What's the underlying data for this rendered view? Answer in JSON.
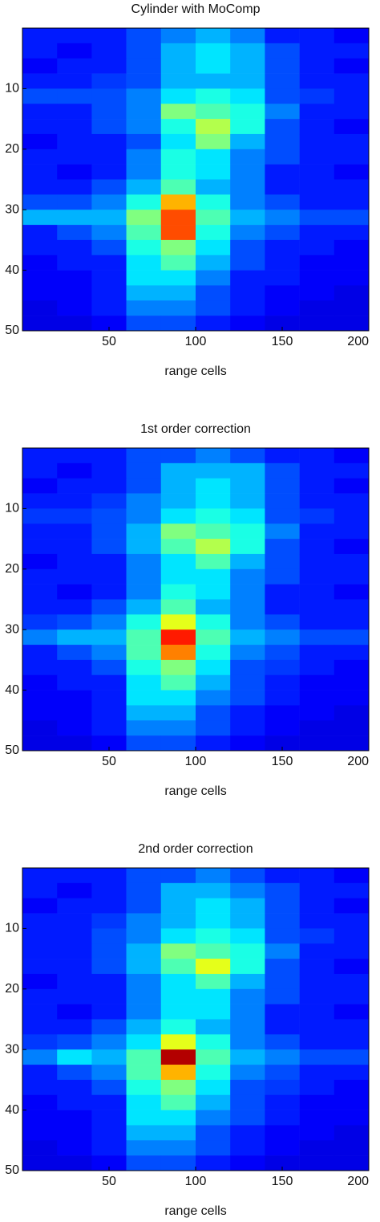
{
  "chart_data": [
    {
      "type": "heatmap",
      "title": "Cylinder with MoComp",
      "xlabel": "range cells",
      "xlim": [
        0,
        200
      ],
      "ylim": [
        0,
        50
      ],
      "xticks": [
        50,
        100,
        150,
        200
      ],
      "yticks": [
        10,
        20,
        30,
        40,
        50
      ],
      "colormap": "jet",
      "clim": [
        0,
        1
      ],
      "xbins": [
        0,
        20,
        40,
        60,
        80,
        100,
        120,
        140,
        160,
        180,
        200
      ],
      "ybins": [
        0,
        2.5,
        5,
        7.5,
        10,
        12.5,
        15,
        17.5,
        20,
        22.5,
        25,
        27.5,
        30,
        32.5,
        35,
        37.5,
        40,
        42.5,
        45,
        47.5,
        50
      ],
      "values": [
        [
          0.15,
          0.15,
          0.15,
          0.2,
          0.25,
          0.3,
          0.25,
          0.15,
          0.15,
          0.12
        ],
        [
          0.15,
          0.12,
          0.15,
          0.2,
          0.3,
          0.35,
          0.3,
          0.2,
          0.15,
          0.15
        ],
        [
          0.12,
          0.15,
          0.15,
          0.2,
          0.3,
          0.35,
          0.3,
          0.2,
          0.15,
          0.12
        ],
        [
          0.15,
          0.15,
          0.18,
          0.2,
          0.3,
          0.3,
          0.3,
          0.2,
          0.15,
          0.15
        ],
        [
          0.2,
          0.2,
          0.2,
          0.25,
          0.35,
          0.4,
          0.35,
          0.2,
          0.18,
          0.15
        ],
        [
          0.15,
          0.15,
          0.2,
          0.25,
          0.5,
          0.45,
          0.4,
          0.25,
          0.15,
          0.15
        ],
        [
          0.15,
          0.15,
          0.2,
          0.25,
          0.4,
          0.55,
          0.4,
          0.2,
          0.15,
          0.12
        ],
        [
          0.12,
          0.15,
          0.15,
          0.2,
          0.35,
          0.5,
          0.3,
          0.2,
          0.15,
          0.15
        ],
        [
          0.15,
          0.15,
          0.15,
          0.25,
          0.4,
          0.35,
          0.25,
          0.2,
          0.15,
          0.15
        ],
        [
          0.15,
          0.12,
          0.15,
          0.25,
          0.4,
          0.35,
          0.25,
          0.15,
          0.15,
          0.12
        ],
        [
          0.15,
          0.15,
          0.2,
          0.3,
          0.45,
          0.3,
          0.25,
          0.15,
          0.15,
          0.15
        ],
        [
          0.2,
          0.2,
          0.25,
          0.4,
          0.7,
          0.4,
          0.25,
          0.2,
          0.15,
          0.15
        ],
        [
          0.3,
          0.3,
          0.3,
          0.5,
          0.8,
          0.45,
          0.3,
          0.25,
          0.2,
          0.2
        ],
        [
          0.15,
          0.2,
          0.25,
          0.45,
          0.8,
          0.4,
          0.25,
          0.2,
          0.15,
          0.15
        ],
        [
          0.15,
          0.15,
          0.2,
          0.4,
          0.5,
          0.35,
          0.2,
          0.15,
          0.15,
          0.12
        ],
        [
          0.12,
          0.15,
          0.15,
          0.35,
          0.45,
          0.3,
          0.2,
          0.15,
          0.12,
          0.12
        ],
        [
          0.12,
          0.12,
          0.15,
          0.35,
          0.35,
          0.25,
          0.15,
          0.15,
          0.12,
          0.12
        ],
        [
          0.12,
          0.12,
          0.15,
          0.3,
          0.3,
          0.2,
          0.15,
          0.12,
          0.12,
          0.1
        ],
        [
          0.1,
          0.12,
          0.15,
          0.25,
          0.25,
          0.2,
          0.15,
          0.12,
          0.1,
          0.1
        ],
        [
          0.1,
          0.1,
          0.12,
          0.2,
          0.2,
          0.15,
          0.12,
          0.1,
          0.1,
          0.1
        ]
      ]
    },
    {
      "type": "heatmap",
      "title": "1st order correction",
      "xlabel": "range cells",
      "xlim": [
        0,
        200
      ],
      "ylim": [
        0,
        50
      ],
      "xticks": [
        50,
        100,
        150,
        200
      ],
      "yticks": [
        10,
        20,
        30,
        40,
        50
      ],
      "colormap": "jet",
      "clim": [
        0,
        1
      ],
      "xbins": [
        0,
        20,
        40,
        60,
        80,
        100,
        120,
        140,
        160,
        180,
        200
      ],
      "ybins": [
        0,
        2.5,
        5,
        7.5,
        10,
        12.5,
        15,
        17.5,
        20,
        22.5,
        25,
        27.5,
        30,
        32.5,
        35,
        37.5,
        40,
        42.5,
        45,
        47.5,
        50
      ],
      "values": [
        [
          0.15,
          0.15,
          0.15,
          0.2,
          0.2,
          0.25,
          0.2,
          0.15,
          0.15,
          0.12
        ],
        [
          0.15,
          0.12,
          0.15,
          0.2,
          0.3,
          0.3,
          0.3,
          0.2,
          0.15,
          0.15
        ],
        [
          0.12,
          0.15,
          0.15,
          0.2,
          0.3,
          0.35,
          0.3,
          0.2,
          0.15,
          0.12
        ],
        [
          0.15,
          0.15,
          0.18,
          0.25,
          0.3,
          0.35,
          0.3,
          0.2,
          0.15,
          0.15
        ],
        [
          0.18,
          0.18,
          0.2,
          0.25,
          0.35,
          0.4,
          0.35,
          0.2,
          0.18,
          0.15
        ],
        [
          0.15,
          0.15,
          0.2,
          0.3,
          0.5,
          0.45,
          0.4,
          0.25,
          0.15,
          0.15
        ],
        [
          0.15,
          0.15,
          0.2,
          0.3,
          0.45,
          0.55,
          0.4,
          0.2,
          0.15,
          0.12
        ],
        [
          0.12,
          0.15,
          0.15,
          0.25,
          0.35,
          0.45,
          0.3,
          0.2,
          0.15,
          0.15
        ],
        [
          0.15,
          0.15,
          0.15,
          0.25,
          0.35,
          0.35,
          0.25,
          0.2,
          0.15,
          0.15
        ],
        [
          0.15,
          0.12,
          0.15,
          0.25,
          0.4,
          0.35,
          0.25,
          0.15,
          0.15,
          0.12
        ],
        [
          0.15,
          0.15,
          0.2,
          0.3,
          0.45,
          0.3,
          0.25,
          0.15,
          0.15,
          0.15
        ],
        [
          0.18,
          0.2,
          0.25,
          0.4,
          0.6,
          0.4,
          0.25,
          0.2,
          0.15,
          0.15
        ],
        [
          0.25,
          0.3,
          0.3,
          0.45,
          0.85,
          0.45,
          0.3,
          0.25,
          0.2,
          0.2
        ],
        [
          0.15,
          0.2,
          0.25,
          0.45,
          0.75,
          0.4,
          0.25,
          0.2,
          0.15,
          0.15
        ],
        [
          0.15,
          0.15,
          0.2,
          0.4,
          0.5,
          0.35,
          0.2,
          0.18,
          0.15,
          0.12
        ],
        [
          0.12,
          0.15,
          0.15,
          0.35,
          0.45,
          0.3,
          0.2,
          0.15,
          0.12,
          0.12
        ],
        [
          0.12,
          0.12,
          0.15,
          0.35,
          0.35,
          0.25,
          0.2,
          0.15,
          0.12,
          0.12
        ],
        [
          0.12,
          0.12,
          0.15,
          0.3,
          0.3,
          0.2,
          0.15,
          0.12,
          0.12,
          0.1
        ],
        [
          0.1,
          0.12,
          0.15,
          0.25,
          0.25,
          0.2,
          0.15,
          0.12,
          0.1,
          0.1
        ],
        [
          0.1,
          0.1,
          0.12,
          0.2,
          0.2,
          0.15,
          0.12,
          0.1,
          0.1,
          0.1
        ]
      ]
    },
    {
      "type": "heatmap",
      "title": "2nd order correction",
      "xlabel": "range cells",
      "xlim": [
        0,
        200
      ],
      "ylim": [
        0,
        50
      ],
      "xticks": [
        50,
        100,
        150,
        200
      ],
      "yticks": [
        10,
        20,
        30,
        40,
        50
      ],
      "colormap": "jet",
      "clim": [
        0,
        1
      ],
      "xbins": [
        0,
        20,
        40,
        60,
        80,
        100,
        120,
        140,
        160,
        180,
        200
      ],
      "ybins": [
        0,
        2.5,
        5,
        7.5,
        10,
        12.5,
        15,
        17.5,
        20,
        22.5,
        25,
        27.5,
        30,
        32.5,
        35,
        37.5,
        40,
        42.5,
        45,
        47.5,
        50
      ],
      "values": [
        [
          0.15,
          0.15,
          0.15,
          0.2,
          0.2,
          0.25,
          0.2,
          0.15,
          0.15,
          0.12
        ],
        [
          0.15,
          0.12,
          0.15,
          0.2,
          0.3,
          0.3,
          0.25,
          0.2,
          0.15,
          0.15
        ],
        [
          0.12,
          0.15,
          0.15,
          0.2,
          0.3,
          0.35,
          0.3,
          0.2,
          0.15,
          0.12
        ],
        [
          0.15,
          0.15,
          0.18,
          0.25,
          0.3,
          0.35,
          0.3,
          0.2,
          0.15,
          0.15
        ],
        [
          0.15,
          0.15,
          0.2,
          0.25,
          0.35,
          0.4,
          0.35,
          0.2,
          0.18,
          0.15
        ],
        [
          0.15,
          0.15,
          0.2,
          0.3,
          0.5,
          0.45,
          0.4,
          0.25,
          0.15,
          0.15
        ],
        [
          0.15,
          0.15,
          0.2,
          0.3,
          0.45,
          0.6,
          0.4,
          0.2,
          0.15,
          0.12
        ],
        [
          0.12,
          0.15,
          0.15,
          0.25,
          0.35,
          0.45,
          0.3,
          0.2,
          0.15,
          0.15
        ],
        [
          0.15,
          0.15,
          0.15,
          0.25,
          0.35,
          0.35,
          0.25,
          0.2,
          0.15,
          0.15
        ],
        [
          0.15,
          0.12,
          0.15,
          0.25,
          0.35,
          0.35,
          0.25,
          0.15,
          0.15,
          0.12
        ],
        [
          0.15,
          0.15,
          0.2,
          0.3,
          0.4,
          0.3,
          0.25,
          0.15,
          0.15,
          0.15
        ],
        [
          0.18,
          0.2,
          0.25,
          0.35,
          0.6,
          0.4,
          0.25,
          0.2,
          0.15,
          0.15
        ],
        [
          0.25,
          0.35,
          0.3,
          0.45,
          0.95,
          0.45,
          0.3,
          0.25,
          0.2,
          0.2
        ],
        [
          0.15,
          0.2,
          0.25,
          0.45,
          0.7,
          0.4,
          0.25,
          0.2,
          0.15,
          0.15
        ],
        [
          0.15,
          0.15,
          0.2,
          0.4,
          0.5,
          0.35,
          0.2,
          0.18,
          0.15,
          0.12
        ],
        [
          0.12,
          0.15,
          0.15,
          0.35,
          0.45,
          0.3,
          0.2,
          0.15,
          0.12,
          0.12
        ],
        [
          0.12,
          0.12,
          0.15,
          0.35,
          0.35,
          0.25,
          0.2,
          0.15,
          0.12,
          0.12
        ],
        [
          0.12,
          0.12,
          0.15,
          0.3,
          0.3,
          0.2,
          0.15,
          0.12,
          0.12,
          0.1
        ],
        [
          0.1,
          0.12,
          0.15,
          0.25,
          0.25,
          0.2,
          0.15,
          0.12,
          0.1,
          0.1
        ],
        [
          0.1,
          0.1,
          0.12,
          0.2,
          0.2,
          0.15,
          0.12,
          0.1,
          0.1,
          0.1
        ]
      ]
    }
  ]
}
